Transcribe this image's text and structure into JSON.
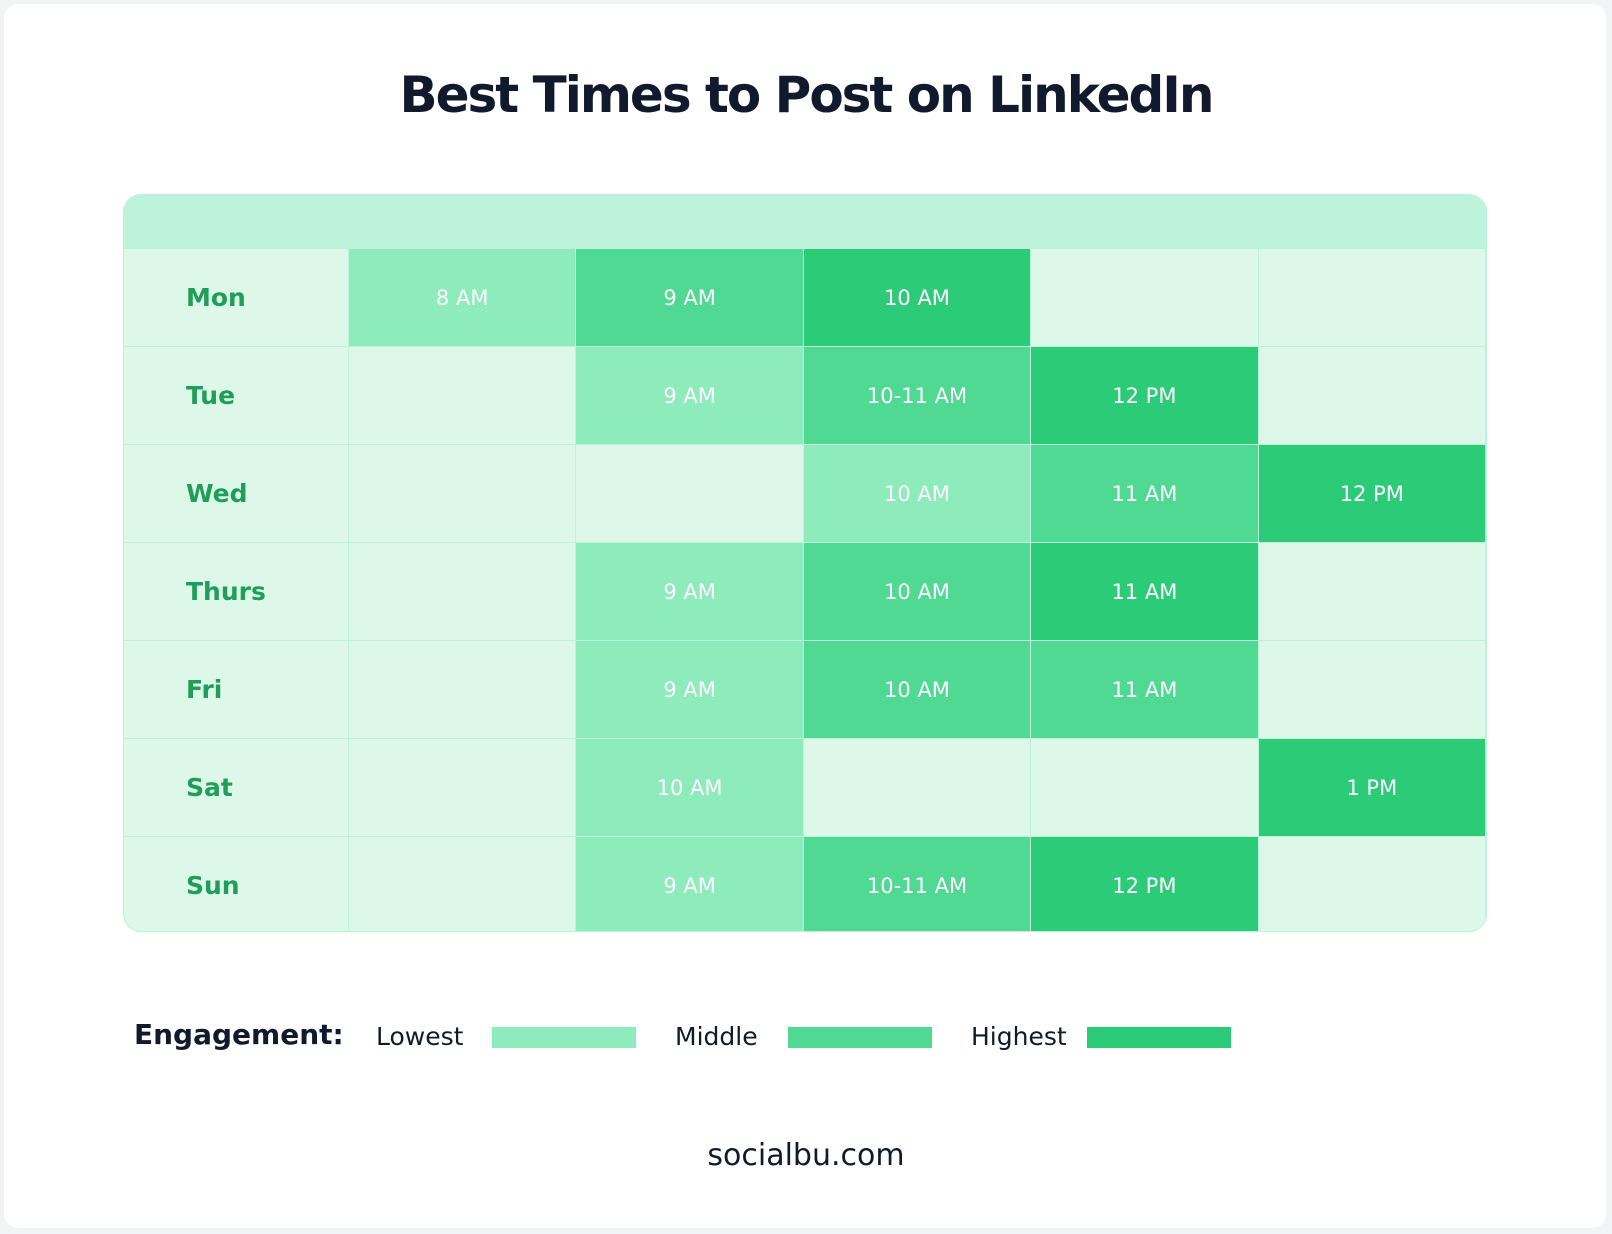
{
  "header": {
    "title": "Best Times to Post on LinkedIn"
  },
  "table": {
    "rows": [
      {
        "day": "Mon",
        "cells": [
          {
            "text": "8 AM",
            "level": 0
          },
          {
            "text": "9 AM",
            "level": 1
          },
          {
            "text": "10 AM",
            "level": 2
          },
          null,
          null
        ]
      },
      {
        "day": "Tue",
        "cells": [
          null,
          {
            "text": "9 AM",
            "level": 0
          },
          {
            "text": "10-11 AM",
            "level": 1
          },
          {
            "text": "12 PM",
            "level": 2
          },
          null
        ]
      },
      {
        "day": "Wed",
        "cells": [
          null,
          null,
          {
            "text": "10 AM",
            "level": 0
          },
          {
            "text": "11 AM",
            "level": 1
          },
          {
            "text": "12 PM",
            "level": 2
          }
        ]
      },
      {
        "day": "Thurs",
        "cells": [
          null,
          {
            "text": "9 AM",
            "level": 0
          },
          {
            "text": "10 AM",
            "level": 1
          },
          {
            "text": "11 AM",
            "level": 2
          },
          null
        ]
      },
      {
        "day": "Fri",
        "cells": [
          null,
          {
            "text": "9 AM",
            "level": 0
          },
          {
            "text": "10 AM",
            "level": 1
          },
          {
            "text": "11 AM",
            "level": 1
          },
          null
        ]
      },
      {
        "day": "Sat",
        "cells": [
          null,
          {
            "text": "10 AM",
            "level": 0
          },
          null,
          null,
          {
            "text": "1 PM",
            "level": 2
          }
        ]
      },
      {
        "day": "Sun",
        "cells": [
          null,
          {
            "text": "9 AM",
            "level": 0
          },
          {
            "text": "10-11 AM",
            "level": 1
          },
          {
            "text": "12 PM",
            "level": 2
          },
          null
        ]
      }
    ]
  },
  "legend": {
    "title": "Engagement:",
    "items": [
      {
        "label": "Lowest",
        "color": "#8eebbb"
      },
      {
        "label": "Middle",
        "color": "#50d992"
      },
      {
        "label": "Highest",
        "color": "#2ccb78"
      }
    ]
  },
  "footer": {
    "text": "socialbu.com"
  }
}
